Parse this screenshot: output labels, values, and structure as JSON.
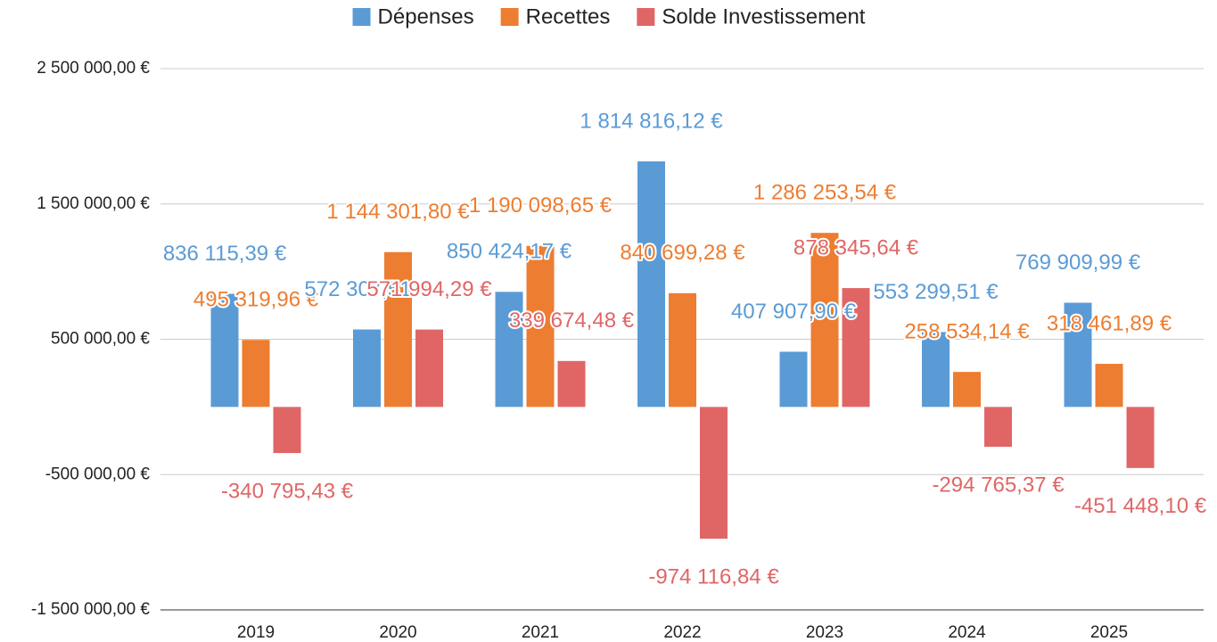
{
  "chart_data": {
    "type": "bar",
    "categories": [
      "2019",
      "2020",
      "2021",
      "2022",
      "2023",
      "2024",
      "2025"
    ],
    "series": [
      {
        "name": "Dépenses",
        "color": "#5b9bd5",
        "values": [
          836115.39,
          572307.51,
          850424.17,
          1814816.12,
          407907.9,
          553299.51,
          769909.99
        ],
        "value_labels": [
          "836 115,39 €",
          "572 307,51 €",
          "850 424,17 €",
          "1 814 816,12 €",
          "407 907,90 €",
          "553 299,51 €",
          "769 909,99 €"
        ]
      },
      {
        "name": "Recettes",
        "color": "#ed7d31",
        "values": [
          495319.96,
          1144301.8,
          1190098.65,
          840699.28,
          1286253.54,
          258534.14,
          318461.89
        ],
        "value_labels": [
          "495 319,96 €",
          "1 144 301,80 €",
          "1 190 098,65 €",
          "840 699,28 €",
          "1 286 253,54 €",
          "258 534,14 €",
          "318 461,89 €"
        ]
      },
      {
        "name": "Solde Investissement",
        "color": "#e06666",
        "values": [
          -340795.43,
          571994.29,
          339674.48,
          -974116.84,
          878345.64,
          -294765.37,
          -451448.1
        ],
        "value_labels": [
          "-340 795,43 €",
          "571 994,29 €",
          "339 674,48 €",
          "-974 116,84 €",
          "878 345,64 €",
          "-294 765,37 €",
          "-451 448,10 €"
        ]
      }
    ],
    "ylim": [
      -1500000,
      2500000
    ],
    "yticks": [
      {
        "value": 2500000,
        "label": "2 500 000,00 €"
      },
      {
        "value": 1500000,
        "label": "1 500 000,00 €"
      },
      {
        "value": 500000,
        "label": "500 000,00 €"
      },
      {
        "value": -500000,
        "label": "-500 000,00 €"
      },
      {
        "value": -1500000,
        "label": "-1 500 000,00 €"
      }
    ],
    "grid": true,
    "legend": "top"
  }
}
